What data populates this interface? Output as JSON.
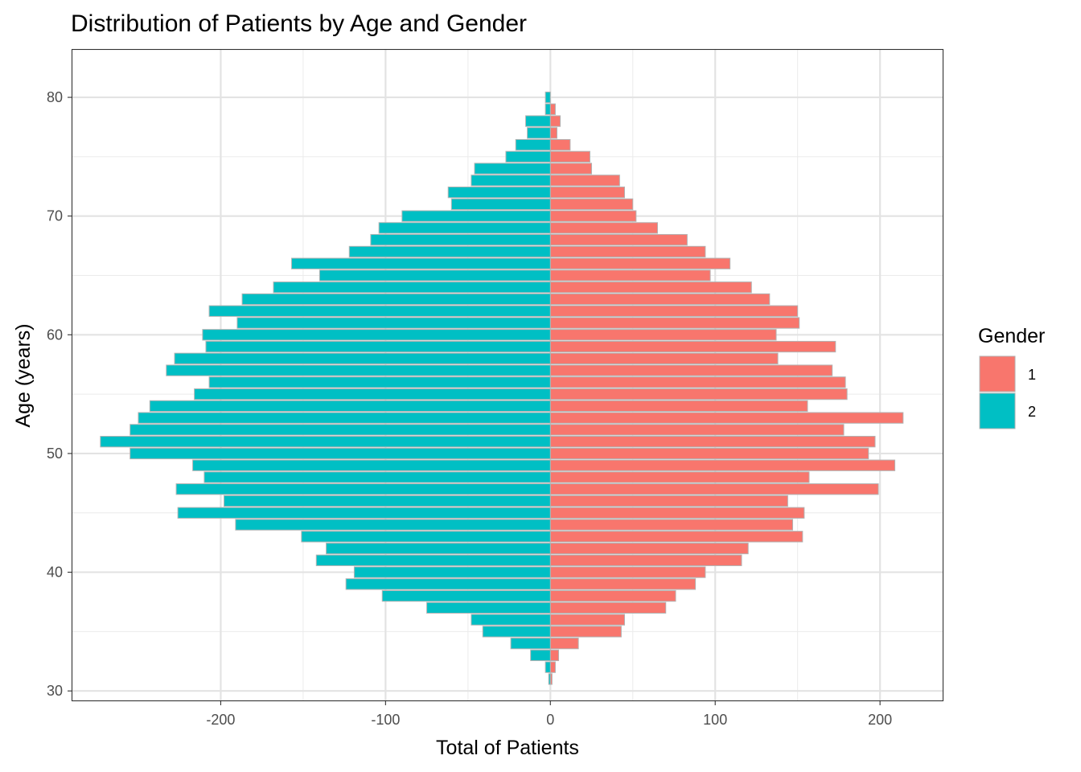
{
  "chart_data": {
    "type": "bar",
    "orientation": "horizontal",
    "layout": "population-pyramid",
    "title": "Distribution of Patients by Age and Gender",
    "xlabel": "Total of Patients",
    "ylabel": "Age (years)",
    "xlim": [
      -290,
      238
    ],
    "ylim": [
      29.2,
      84.0
    ],
    "x_ticks": [
      -200,
      -100,
      0,
      100,
      200
    ],
    "x_tick_labels": [
      "-200",
      "-100",
      "0",
      "100",
      "200"
    ],
    "y_ticks": [
      30,
      40,
      50,
      60,
      70,
      80
    ],
    "y_tick_labels": [
      "30",
      "40",
      "50",
      "60",
      "70",
      "80"
    ],
    "grid": true,
    "legend": {
      "title": "Gender",
      "position": "right"
    },
    "ages": [
      31,
      32,
      33,
      34,
      35,
      36,
      37,
      38,
      39,
      40,
      41,
      42,
      43,
      44,
      45,
      46,
      47,
      48,
      49,
      50,
      51,
      52,
      53,
      54,
      55,
      56,
      57,
      58,
      59,
      60,
      61,
      62,
      63,
      64,
      65,
      66,
      67,
      68,
      69,
      70,
      71,
      72,
      73,
      74,
      75,
      76,
      77,
      78,
      79,
      80,
      81
    ],
    "series": [
      {
        "name": "1",
        "color": "#f8766d",
        "values": [
          1,
          3,
          5,
          17,
          43,
          45,
          70,
          76,
          88,
          94,
          116,
          120,
          153,
          147,
          154,
          144,
          199,
          157,
          209,
          193,
          197,
          178,
          214,
          156,
          180,
          179,
          171,
          138,
          173,
          137,
          151,
          150,
          133,
          122,
          97,
          109,
          94,
          83,
          65,
          52,
          50,
          45,
          42,
          25,
          24,
          12,
          4,
          6,
          3,
          0,
          0
        ]
      },
      {
        "name": "2",
        "color": "#00bfc4",
        "values": [
          -1,
          -3,
          -12,
          -24,
          -41,
          -48,
          -75,
          -102,
          -124,
          -119,
          -142,
          -136,
          -151,
          -191,
          -226,
          -198,
          -227,
          -210,
          -217,
          -255,
          -273,
          -255,
          -250,
          -243,
          -216,
          -207,
          -233,
          -228,
          -209,
          -211,
          -190,
          -207,
          -187,
          -168,
          -140,
          -157,
          -122,
          -109,
          -104,
          -90,
          -60,
          -62,
          -48,
          -46,
          -27,
          -21,
          -14,
          -15,
          -3,
          -3,
          0
        ]
      }
    ]
  }
}
